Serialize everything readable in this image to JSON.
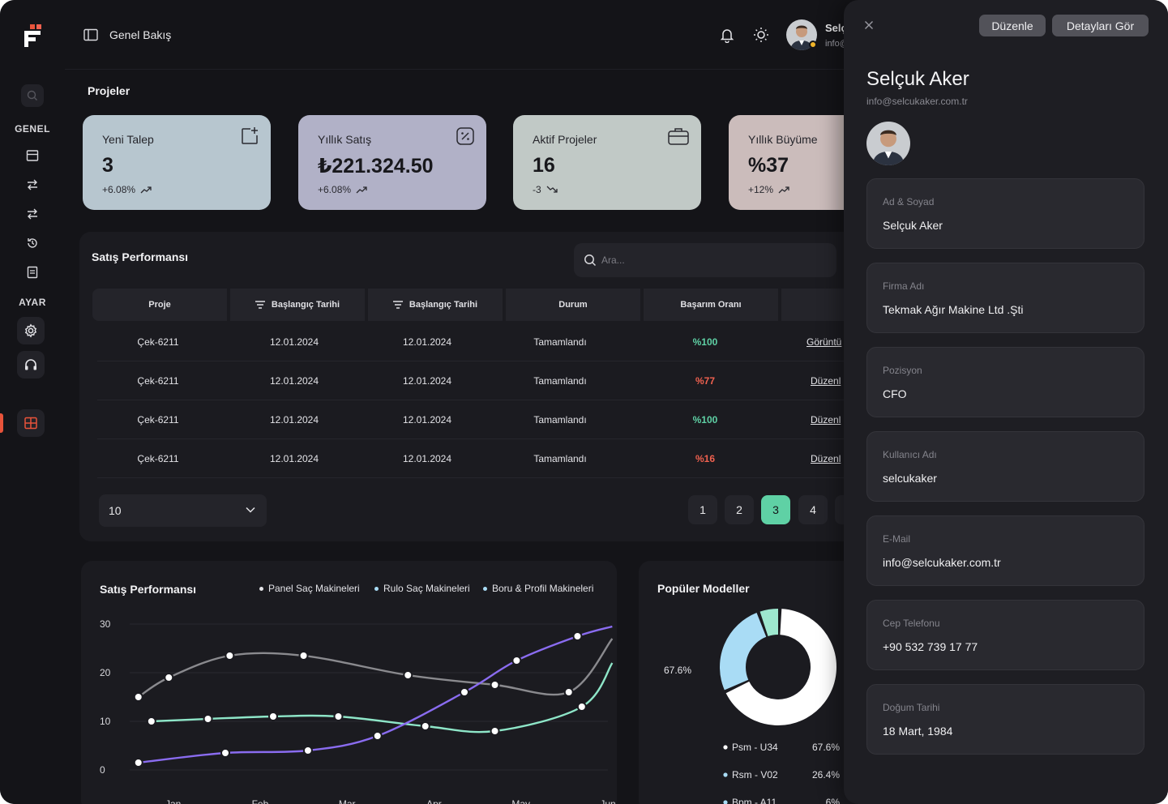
{
  "colors": {
    "accent": "#e8533a",
    "success": "#5fd1a5",
    "danger": "#f0614f",
    "series_purple": "#8a6cf0",
    "series_grey": "#8a8a8e",
    "series_teal": "#8ee6c8"
  },
  "sidebar": {
    "section_general": "GENEL",
    "section_settings": "AYAR",
    "icons": [
      "search-icon",
      "table-icon",
      "transfer-icon",
      "transfer-alt-icon",
      "history-icon",
      "document-icon",
      "gear-icon",
      "headset-icon",
      "grid-icon"
    ]
  },
  "header": {
    "title": "Genel Bakış",
    "user_name": "Selçuk Aker",
    "user_email": "info@selcukaker.com.tr"
  },
  "projects": {
    "title": "Projeler",
    "cards": [
      {
        "label": "Yeni Talep",
        "value": "3",
        "change": "+6.08%",
        "icon": "add-box-icon",
        "color": "#b7c6cf"
      },
      {
        "label": "Yıllık Satış",
        "value": "₺221.324.50",
        "change": "+6.08%",
        "icon": "percent-badge-icon",
        "color": "#b1b1c7"
      },
      {
        "label": "Aktif Projeler",
        "value": "16",
        "change": "-3",
        "icon": "briefcase-icon",
        "color": "#c1c9c6"
      },
      {
        "label": "Yıllık Büyüme",
        "value": "%37",
        "change": "+12%",
        "icon": "growth-icon",
        "color": "#cbbcbb"
      }
    ]
  },
  "sales_table": {
    "title": "Satış Performansı",
    "search_placeholder": "Ara...",
    "columns": [
      "Proje",
      "Başlangıç Tarihi",
      "Başlangıç Tarihi",
      "Durum",
      "Başarım Oranı"
    ],
    "rows": [
      {
        "project": "Çek-6211",
        "start1": "12.01.2024",
        "start2": "12.01.2024",
        "status": "Tamamlandı",
        "rate": "%100",
        "rate_level": "good",
        "action": "Görüntü"
      },
      {
        "project": "Çek-6211",
        "start1": "12.01.2024",
        "start2": "12.01.2024",
        "status": "Tamamlandı",
        "rate": "%77",
        "rate_level": "bad",
        "action": "Düzenl"
      },
      {
        "project": "Çek-6211",
        "start1": "12.01.2024",
        "start2": "12.01.2024",
        "status": "Tamamlandı",
        "rate": "%100",
        "rate_level": "good",
        "action": "Düzenl"
      },
      {
        "project": "Çek-6211",
        "start1": "12.01.2024",
        "start2": "12.01.2024",
        "status": "Tamamlandı",
        "rate": "%16",
        "rate_level": "bad",
        "action": "Düzenl"
      }
    ],
    "page_size": "10",
    "pages": [
      "1",
      "2",
      "3",
      "4"
    ],
    "current_page": "3"
  },
  "chart_data": [
    {
      "type": "line",
      "title": "Satış Performansı",
      "categories": [
        "Jan",
        "Feb",
        "Mar",
        "Apr",
        "May",
        "Jun"
      ],
      "ylim": [
        0,
        30
      ],
      "yticks": [
        "30",
        "20",
        "10",
        "0"
      ],
      "grid": true,
      "legend_position": "top-right",
      "series": [
        {
          "name": "Panel Saç Makineleri",
          "color": "#8a8a8e",
          "x": [
            0.1,
            0.45,
            1.15,
            2.0,
            3.2,
            4.2,
            5.05,
            5.55
          ],
          "values": [
            15,
            19,
            23.5,
            23.5,
            19.5,
            17.5,
            16,
            27
          ]
        },
        {
          "name": "Rulo Saç Makineleri",
          "color": "#8ee6c8",
          "x": [
            0.25,
            0.9,
            1.65,
            2.4,
            3.4,
            4.2,
            5.2,
            5.55
          ],
          "values": [
            10,
            10.5,
            11,
            11,
            9,
            8,
            13,
            22
          ]
        },
        {
          "name": "Boru & Profil Makineleri",
          "color": "#8a6cf0",
          "x": [
            0.1,
            1.1,
            2.05,
            2.85,
            3.85,
            4.45,
            5.15,
            5.55
          ],
          "values": [
            1.5,
            3.5,
            4,
            7,
            16,
            22.5,
            27.5,
            29.5
          ]
        }
      ]
    },
    {
      "type": "pie",
      "title": "Popüler Modeller",
      "callout": "67.6%",
      "slices": [
        {
          "label": "Psm - U34",
          "value": 67.6,
          "display": "67.6%",
          "color": "#ffffff"
        },
        {
          "label": "Rsm - V02",
          "value": 26.4,
          "display": "26.4%",
          "color": "#a9dcf5"
        },
        {
          "label": "Bpm - A11",
          "value": 6,
          "display": "6%",
          "color": "#9ee8cf"
        }
      ]
    }
  ],
  "detail": {
    "edit_label": "Düzenle",
    "view_label": "Detayları Gör",
    "name": "Selçuk Aker",
    "email": "info@selcukaker.com.tr",
    "fields": [
      {
        "label": "Ad & Soyad",
        "value": "Selçuk Aker"
      },
      {
        "label": "Firma Adı",
        "value": "Tekmak Ağır Makine Ltd .Şti"
      },
      {
        "label": "Pozisyon",
        "value": "CFO"
      },
      {
        "label": "Kullanıcı Adı",
        "value": "selcukaker"
      },
      {
        "label": "E-Mail",
        "value": "info@selcukaker.com.tr"
      },
      {
        "label": "Cep Telefonu",
        "value": "+90 532 739 17 77"
      },
      {
        "label": "Doğum Tarihi",
        "value": "18 Mart, 1984"
      }
    ]
  }
}
